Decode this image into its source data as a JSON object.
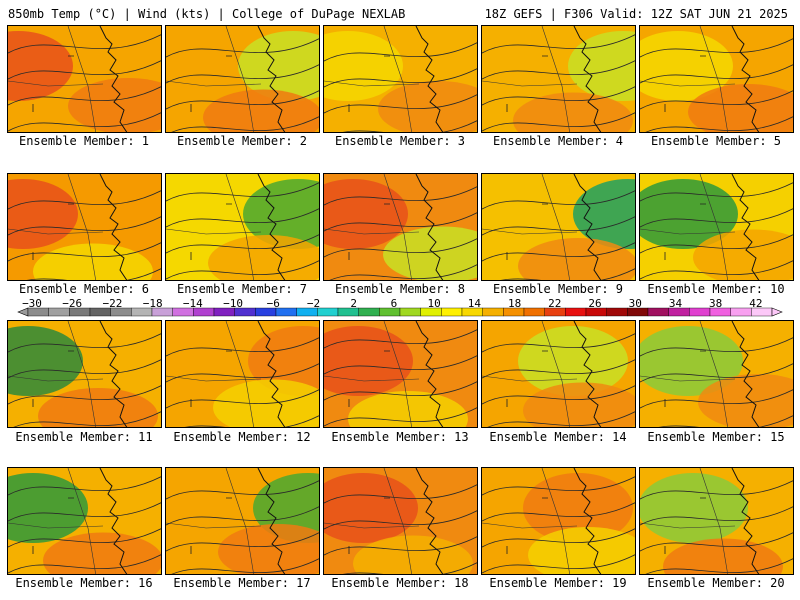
{
  "header": {
    "left": "850mb Temp (°C) | Wind (kts) | College of DuPage NEXLAB",
    "right": "18Z GEFS | F306 Valid: 12Z SAT JUN 21 2025"
  },
  "caption_prefix": "Ensemble Member: ",
  "members": [
    {
      "label": "Ensemble Member: 1",
      "base": "#f5a500",
      "blobs": [
        {
          "c": "#e8501a"
        },
        {
          "c": "#f07a10"
        }
      ]
    },
    {
      "label": "Ensemble Member: 2",
      "base": "#f5a500",
      "blobs": [
        {
          "c": "#c8e024"
        },
        {
          "c": "#f07a10"
        }
      ]
    },
    {
      "label": "Ensemble Member: 3",
      "base": "#f5b000",
      "blobs": [
        {
          "c": "#f5d800"
        },
        {
          "c": "#f08a10"
        }
      ]
    },
    {
      "label": "Ensemble Member: 4",
      "base": "#f5b000",
      "blobs": [
        {
          "c": "#c8e024"
        },
        {
          "c": "#f08a10"
        }
      ]
    },
    {
      "label": "Ensemble Member: 5",
      "base": "#f5a500",
      "blobs": [
        {
          "c": "#f5d800"
        },
        {
          "c": "#f07a10"
        }
      ]
    },
    {
      "label": "Ensemble Member: 6",
      "base": "#f59a00",
      "blobs": [
        {
          "c": "#e8501a"
        },
        {
          "c": "#f5d800"
        }
      ]
    },
    {
      "label": "Ensemble Member: 7",
      "base": "#f5d800",
      "blobs": [
        {
          "c": "#4aa830"
        },
        {
          "c": "#f5a500"
        }
      ]
    },
    {
      "label": "Ensemble Member: 8",
      "base": "#f08a10",
      "blobs": [
        {
          "c": "#e8501a"
        },
        {
          "c": "#c8e024"
        }
      ]
    },
    {
      "label": "Ensemble Member: 9",
      "base": "#f5c000",
      "blobs": [
        {
          "c": "#1ea060"
        },
        {
          "c": "#f08a10"
        }
      ]
    },
    {
      "label": "Ensemble Member: 10",
      "base": "#f5d000",
      "blobs": [
        {
          "c": "#2e9a3a"
        },
        {
          "c": "#f5a500"
        }
      ]
    },
    {
      "label": "Ensemble Member: 11",
      "base": "#f5b000",
      "blobs": [
        {
          "c": "#2e8a3a"
        },
        {
          "c": "#f07a10"
        }
      ]
    },
    {
      "label": "Ensemble Member: 12",
      "base": "#f5a500",
      "blobs": [
        {
          "c": "#f07a10"
        },
        {
          "c": "#f5d000"
        }
      ]
    },
    {
      "label": "Ensemble Member: 13",
      "base": "#f08a10",
      "blobs": [
        {
          "c": "#e8501a"
        },
        {
          "c": "#f5d000"
        }
      ]
    },
    {
      "label": "Ensemble Member: 14",
      "base": "#f5a500",
      "blobs": [
        {
          "c": "#c8e024"
        },
        {
          "c": "#f08a10"
        }
      ]
    },
    {
      "label": "Ensemble Member: 15",
      "base": "#f5b000",
      "blobs": [
        {
          "c": "#8acb3a"
        },
        {
          "c": "#f08a10"
        }
      ]
    },
    {
      "label": "Ensemble Member: 16",
      "base": "#f5b000",
      "blobs": [
        {
          "c": "#2e9a3a"
        },
        {
          "c": "#f07a10"
        }
      ]
    },
    {
      "label": "Ensemble Member: 17",
      "base": "#f5a500",
      "blobs": [
        {
          "c": "#4aa830"
        },
        {
          "c": "#f07a10"
        }
      ]
    },
    {
      "label": "Ensemble Member: 18",
      "base": "#f08a10",
      "blobs": [
        {
          "c": "#e8501a"
        },
        {
          "c": "#f5b000"
        }
      ]
    },
    {
      "label": "Ensemble Member: 19",
      "base": "#f5a500",
      "blobs": [
        {
          "c": "#f07a10"
        },
        {
          "c": "#f5d000"
        }
      ]
    },
    {
      "label": "Ensemble Member: 20",
      "base": "#f5b000",
      "blobs": [
        {
          "c": "#8acb3a"
        },
        {
          "c": "#f07a10"
        }
      ]
    }
  ],
  "colorbar": {
    "ticks": [
      "−30",
      "−26",
      "−22",
      "−18",
      "−14",
      "−10",
      "−6",
      "−2",
      "2",
      "6",
      "10",
      "14",
      "18",
      "22",
      "26",
      "30",
      "34",
      "38",
      "42"
    ],
    "colors": [
      "#8c8c8c",
      "#a0a0a0",
      "#7a7a7a",
      "#646464",
      "#8c8c8c",
      "#b4b4b4",
      "#c8a0d8",
      "#d070e0",
      "#b040d0",
      "#8020c0",
      "#5030d0",
      "#2840e0",
      "#2070f0",
      "#10b0f0",
      "#20d0d0",
      "#20c090",
      "#30b050",
      "#60c030",
      "#a0d820",
      "#e0f000",
      "#fff000",
      "#f8d800",
      "#f5b000",
      "#f59000",
      "#f07000",
      "#e84010",
      "#e81010",
      "#c80808",
      "#a00808",
      "#800808",
      "#a01060",
      "#c020a0",
      "#e040d0",
      "#f060e0",
      "#f8a0f0",
      "#fcc8f8"
    ]
  }
}
